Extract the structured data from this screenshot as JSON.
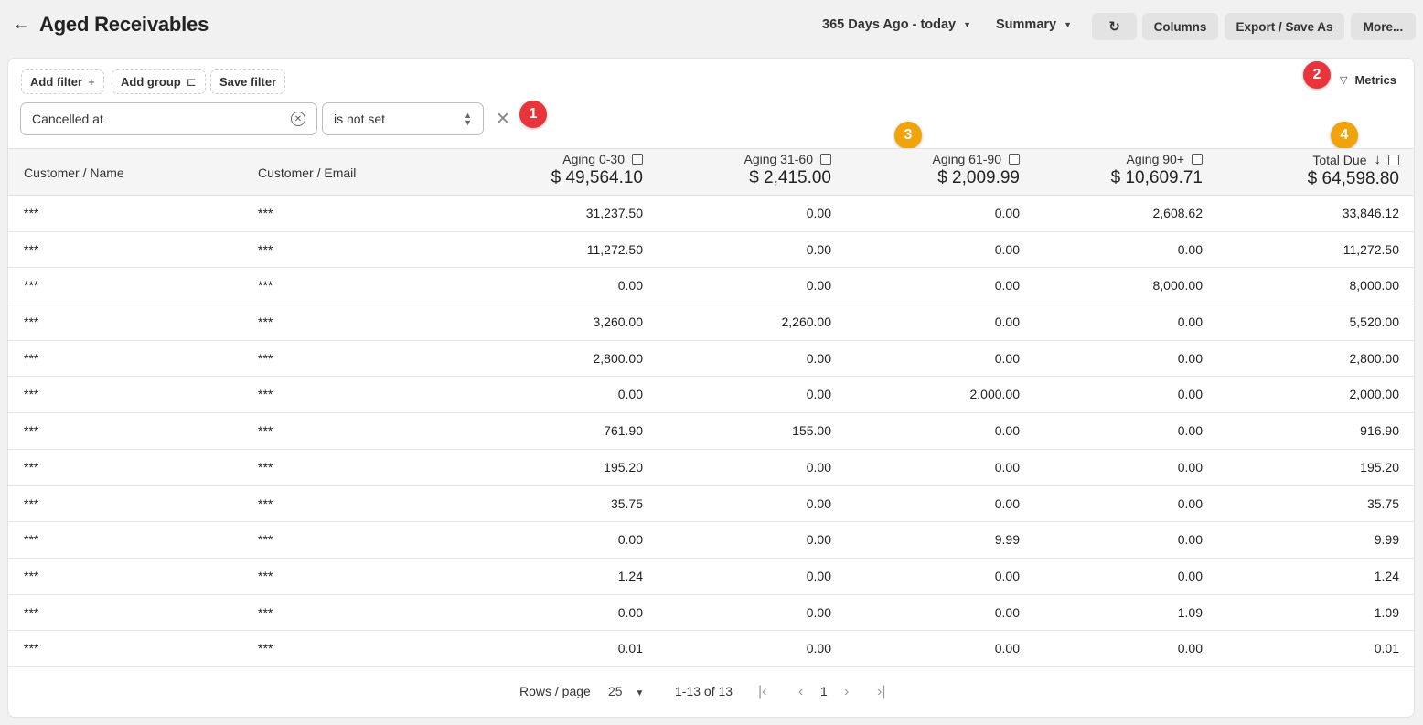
{
  "header": {
    "back_icon": "←",
    "title": "Aged Receivables",
    "date_range": "365 Days Ago - today",
    "view_mode": "Summary",
    "refresh_icon": "↻",
    "columns_label": "Columns",
    "export_label": "Export / Save As",
    "more_label": "More..."
  },
  "toolbar": {
    "add_filter_label": "Add filter",
    "add_filter_icon": "+",
    "add_group_label": "Add group",
    "add_group_icon": "⊏",
    "save_filter_label": "Save filter",
    "metrics_label": "Metrics",
    "metrics_icon": "▽"
  },
  "filter": {
    "field": "Cancelled at",
    "operator": "is not set",
    "clear_icon": "✕",
    "remove_icon": "✕"
  },
  "badges": {
    "colors": {
      "red": "#e8343b",
      "orange": "#f0a30a"
    },
    "items": [
      "1",
      "2",
      "3",
      "4"
    ]
  },
  "table": {
    "columns": {
      "name": "Customer / Name",
      "email": "Customer / Email",
      "aging_0_30": "Aging 0-30",
      "aging_31_60": "Aging 31-60",
      "aging_61_90": "Aging 61-90",
      "aging_90_plus": "Aging 90+",
      "total_due": "Total Due"
    },
    "totals": {
      "aging_0_30": "$ 49,564.10",
      "aging_31_60": "$ 2,415.00",
      "aging_61_90": "$ 2,009.99",
      "aging_90_plus": "$ 10,609.71",
      "total_due": "$ 64,598.80"
    },
    "sort_icon": "↓",
    "rows": [
      {
        "name": "***",
        "email": "***",
        "a0": "31,237.50",
        "a31": "0.00",
        "a61": "0.00",
        "a90": "2,608.62",
        "total": "33,846.12"
      },
      {
        "name": "***",
        "email": "***",
        "a0": "11,272.50",
        "a31": "0.00",
        "a61": "0.00",
        "a90": "0.00",
        "total": "11,272.50"
      },
      {
        "name": "***",
        "email": "***",
        "a0": "0.00",
        "a31": "0.00",
        "a61": "0.00",
        "a90": "8,000.00",
        "total": "8,000.00"
      },
      {
        "name": "***",
        "email": "***",
        "a0": "3,260.00",
        "a31": "2,260.00",
        "a61": "0.00",
        "a90": "0.00",
        "total": "5,520.00"
      },
      {
        "name": "***",
        "email": "***",
        "a0": "2,800.00",
        "a31": "0.00",
        "a61": "0.00",
        "a90": "0.00",
        "total": "2,800.00"
      },
      {
        "name": "***",
        "email": "***",
        "a0": "0.00",
        "a31": "0.00",
        "a61": "2,000.00",
        "a90": "0.00",
        "total": "2,000.00"
      },
      {
        "name": "***",
        "email": "***",
        "a0": "761.90",
        "a31": "155.00",
        "a61": "0.00",
        "a90": "0.00",
        "total": "916.90"
      },
      {
        "name": "***",
        "email": "***",
        "a0": "195.20",
        "a31": "0.00",
        "a61": "0.00",
        "a90": "0.00",
        "total": "195.20"
      },
      {
        "name": "***",
        "email": "***",
        "a0": "35.75",
        "a31": "0.00",
        "a61": "0.00",
        "a90": "0.00",
        "total": "35.75"
      },
      {
        "name": "***",
        "email": "***",
        "a0": "0.00",
        "a31": "0.00",
        "a61": "9.99",
        "a90": "0.00",
        "total": "9.99"
      },
      {
        "name": "***",
        "email": "***",
        "a0": "1.24",
        "a31": "0.00",
        "a61": "0.00",
        "a90": "0.00",
        "total": "1.24"
      },
      {
        "name": "***",
        "email": "***",
        "a0": "0.00",
        "a31": "0.00",
        "a61": "0.00",
        "a90": "1.09",
        "total": "1.09"
      },
      {
        "name": "***",
        "email": "***",
        "a0": "0.01",
        "a31": "0.00",
        "a61": "0.00",
        "a90": "0.00",
        "total": "0.01"
      }
    ]
  },
  "pagination": {
    "rows_per_page_label": "Rows / page",
    "rows_per_page_value": "25",
    "range": "1-13 of 13",
    "current_page": "1",
    "first_icon": "|‹",
    "prev_icon": "‹",
    "next_icon": "›",
    "last_icon": "›|"
  }
}
